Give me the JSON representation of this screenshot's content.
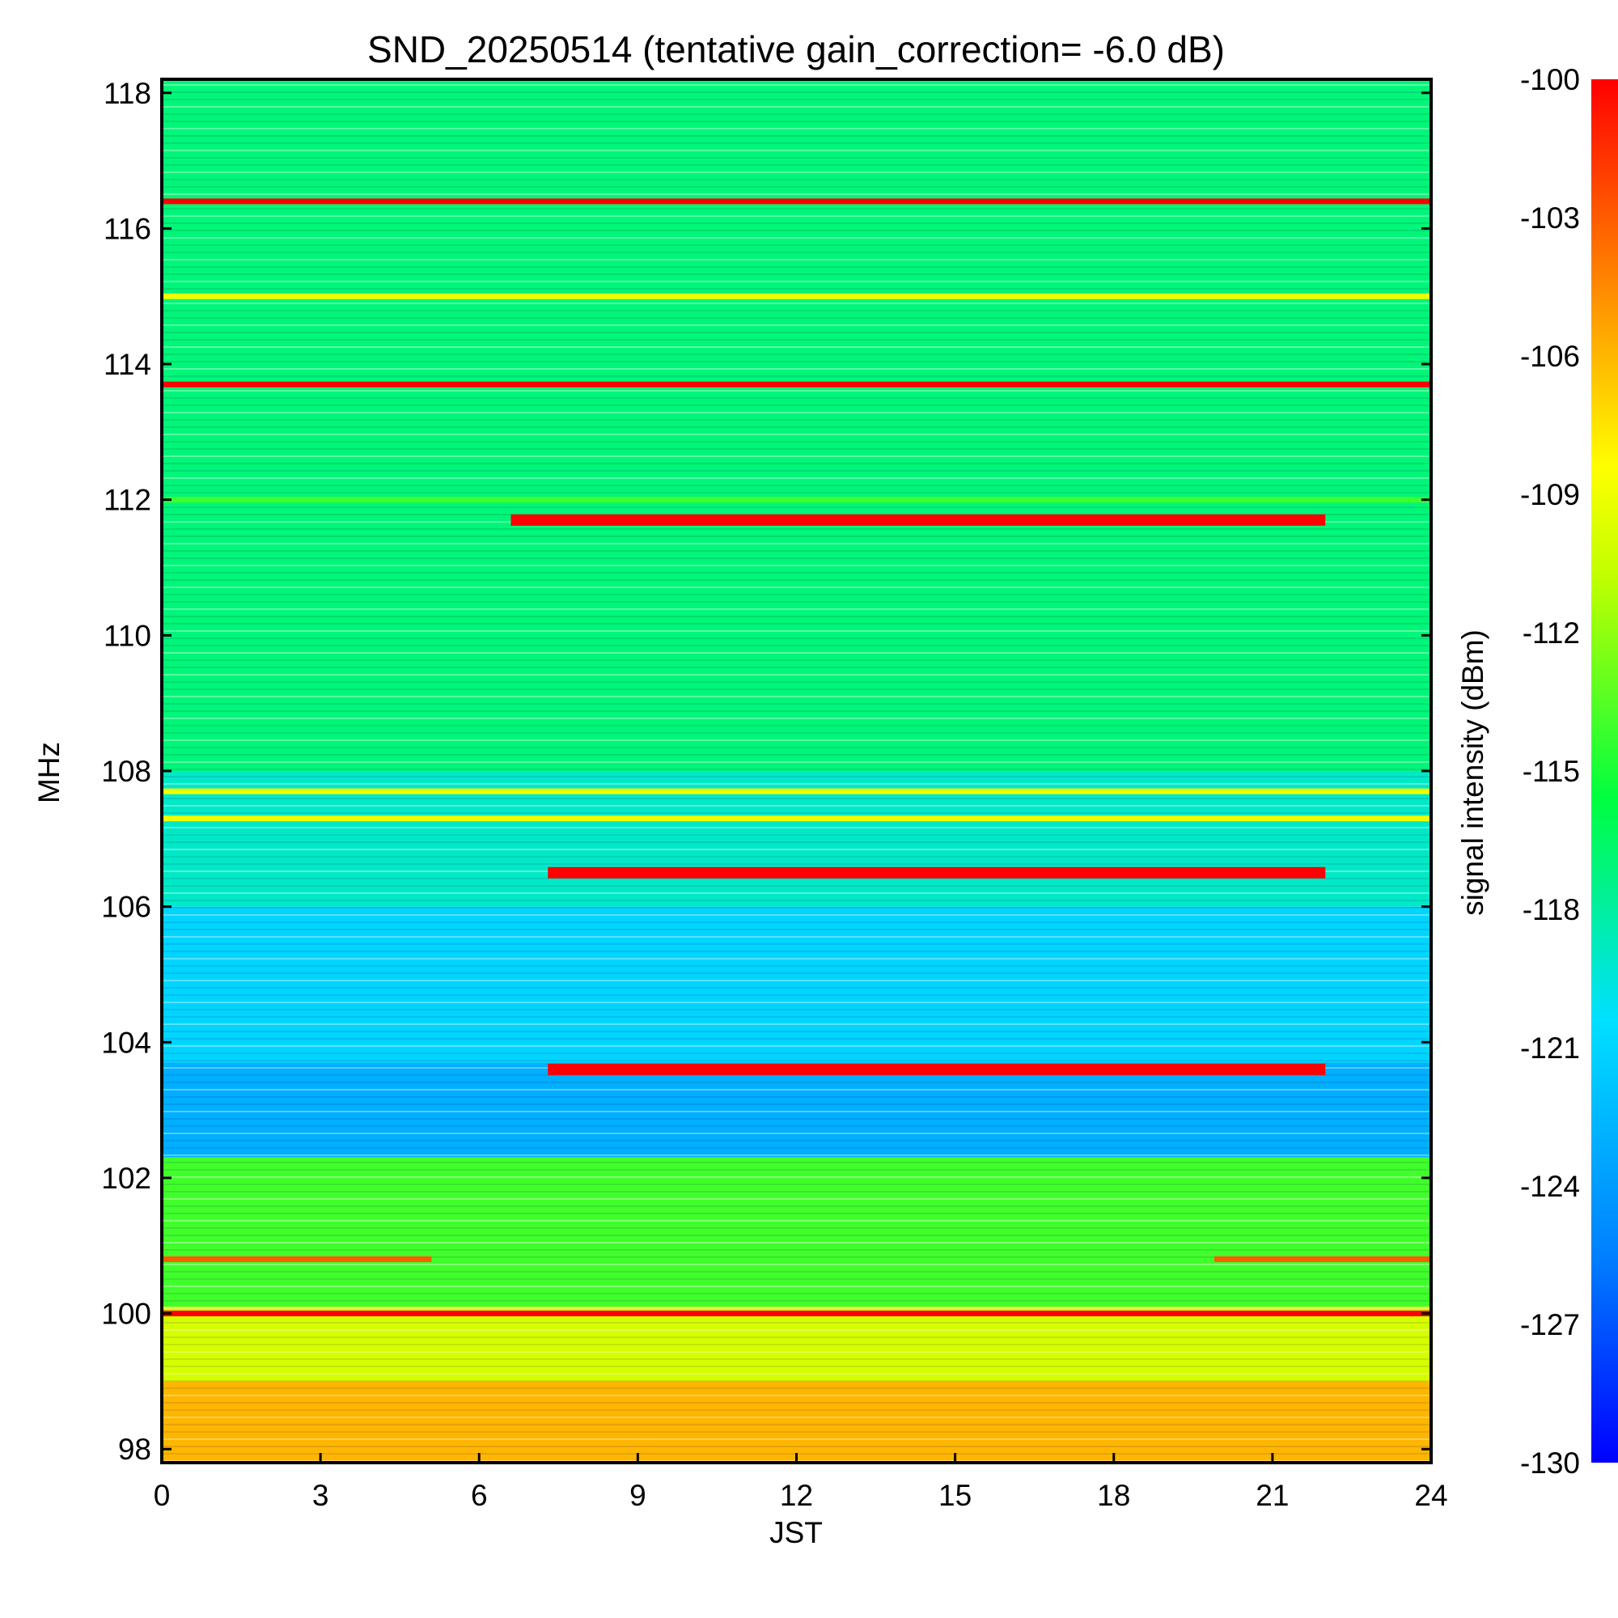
{
  "chart_data": {
    "type": "heatmap",
    "title": "SND_20250514 (tentative gain_correction= -6.0 dB)",
    "xlabel": "JST",
    "ylabel": "MHz",
    "colorbar_label": "signal intensity (dBm)",
    "xlim": [
      0,
      24
    ],
    "ylim": [
      97.8,
      118.2
    ],
    "clim": [
      -130,
      -100
    ],
    "x_ticks": [
      "0",
      "3",
      "6",
      "9",
      "12",
      "15",
      "18",
      "21",
      "24"
    ],
    "y_ticks": [
      "98",
      "100",
      "102",
      "104",
      "106",
      "108",
      "110",
      "112",
      "114",
      "116",
      "118"
    ],
    "colorbar_ticks": [
      "-100",
      "-103",
      "-106",
      "-109",
      "-112",
      "-115",
      "-118",
      "-121",
      "-124",
      "-127",
      "-130"
    ],
    "colormap": [
      "#0000ff",
      "#0080ff",
      "#00e0ff",
      "#00ff40",
      "#c0ff00",
      "#ffff00",
      "#ff8000",
      "#ff0000"
    ],
    "frequency_bands_mhz": [
      {
        "from": 108.0,
        "to": 118.2,
        "level_dbm": -117
      },
      {
        "from": 106.0,
        "to": 108.0,
        "level_dbm": -119
      },
      {
        "from": 103.7,
        "to": 106.0,
        "level_dbm": -121
      },
      {
        "from": 102.3,
        "to": 103.7,
        "level_dbm": -123
      },
      {
        "from": 100.1,
        "to": 102.3,
        "level_dbm": -114
      },
      {
        "from": 99.0,
        "to": 100.1,
        "level_dbm": -110
      },
      {
        "from": 97.8,
        "to": 99.0,
        "level_dbm": -106
      }
    ],
    "strong_signals": [
      {
        "freq_mhz": 116.4,
        "start_jst": 0,
        "end_jst": 24,
        "level_dbm": -100
      },
      {
        "freq_mhz": 115.0,
        "start_jst": 0,
        "end_jst": 24,
        "level_dbm": -109
      },
      {
        "freq_mhz": 113.7,
        "start_jst": 0,
        "end_jst": 24,
        "level_dbm": -100
      },
      {
        "freq_mhz": 112.0,
        "start_jst": 0,
        "end_jst": 24,
        "level_dbm": -114
      },
      {
        "freq_mhz": 111.7,
        "start_jst": 6.6,
        "end_jst": 22,
        "level_dbm": -100
      },
      {
        "freq_mhz": 107.7,
        "start_jst": 0,
        "end_jst": 24,
        "level_dbm": -109
      },
      {
        "freq_mhz": 107.3,
        "start_jst": 0,
        "end_jst": 24,
        "level_dbm": -109
      },
      {
        "freq_mhz": 106.5,
        "start_jst": 7.3,
        "end_jst": 22,
        "level_dbm": -100
      },
      {
        "freq_mhz": 103.6,
        "start_jst": 7.3,
        "end_jst": 22,
        "level_dbm": -100
      },
      {
        "freq_mhz": 100.8,
        "start_jst": 0,
        "end_jst": 5.1,
        "level_dbm": -103
      },
      {
        "freq_mhz": 100.8,
        "start_jst": 19.9,
        "end_jst": 24,
        "level_dbm": -103
      },
      {
        "freq_mhz": 100.0,
        "start_jst": 0,
        "end_jst": 24,
        "level_dbm": -100
      }
    ]
  }
}
